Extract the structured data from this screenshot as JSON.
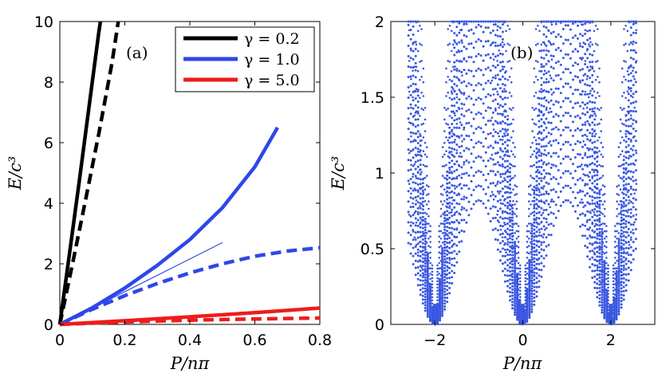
{
  "chart_data": [
    {
      "type": "line",
      "panel_label": "(a)",
      "xlabel": "P/nπ",
      "ylabel": "E/c³",
      "xlim": [
        0,
        0.8
      ],
      "ylim": [
        0,
        10
      ],
      "xticks": [
        "0",
        "0.2",
        "0.4",
        "0.6",
        "0.8"
      ],
      "yticks": [
        "0",
        "2",
        "4",
        "6",
        "8",
        "10"
      ],
      "legend_position": "top-right",
      "legend": [
        {
          "label": "γ = 0.2",
          "color": "#000000"
        },
        {
          "label": "γ = 1.0",
          "color": "#2e47e8"
        },
        {
          "label": "γ = 5.0",
          "color": "#ee1c1c"
        }
      ],
      "series": [
        {
          "name": "γ = 0.2 solid",
          "color": "#000000",
          "style": "solid",
          "x": [
            0,
            0.03,
            0.06,
            0.09,
            0.12,
            0.125
          ],
          "y": [
            0,
            2.35,
            4.75,
            7.2,
            9.65,
            10
          ]
        },
        {
          "name": "γ = 0.2 dashed",
          "color": "#000000",
          "style": "dashed",
          "x": [
            0,
            0.04,
            0.08,
            0.12,
            0.16,
            0.18
          ],
          "y": [
            0,
            2.05,
            4.15,
            6.3,
            8.6,
            10
          ]
        },
        {
          "name": "γ = 1.0 solid",
          "color": "#2e47e8",
          "style": "solid",
          "x": [
            0,
            0.1,
            0.2,
            0.3,
            0.4,
            0.5,
            0.6,
            0.67
          ],
          "y": [
            0,
            0.55,
            1.2,
            1.95,
            2.8,
            3.85,
            5.2,
            6.5
          ]
        },
        {
          "name": "γ = 1.0 dashed",
          "color": "#2e47e8",
          "style": "dashed",
          "x": [
            0,
            0.1,
            0.2,
            0.3,
            0.4,
            0.5,
            0.6,
            0.7,
            0.8
          ],
          "y": [
            0,
            0.5,
            0.95,
            1.35,
            1.7,
            2.0,
            2.25,
            2.42,
            2.53
          ]
        },
        {
          "name": "γ = 1.0 thin",
          "color": "#2e47e8",
          "style": "thin",
          "x": [
            0,
            0.5
          ],
          "y": [
            0,
            2.7
          ]
        },
        {
          "name": "γ = 5.0 solid",
          "color": "#ee1c1c",
          "style": "solid",
          "x": [
            0,
            0.2,
            0.4,
            0.6,
            0.8
          ],
          "y": [
            0,
            0.12,
            0.25,
            0.39,
            0.54
          ]
        },
        {
          "name": "γ = 5.0 dashed",
          "color": "#ee1c1c",
          "style": "dashed",
          "x": [
            0,
            0.2,
            0.4,
            0.6,
            0.8
          ],
          "y": [
            0,
            0.08,
            0.14,
            0.18,
            0.21
          ]
        }
      ]
    },
    {
      "type": "scatter",
      "panel_label": "(b)",
      "xlabel": "P/nπ",
      "ylabel": "E/c³",
      "xlim": [
        -3,
        3
      ],
      "ylim": [
        0,
        2
      ],
      "xticks": [
        "−2",
        "0",
        "2"
      ],
      "yticks": [
        "0",
        "0.5",
        "1",
        "1.5",
        "2"
      ],
      "color": "#3a57e0",
      "band_model": {
        "description": "dense dotted band spectrum; lower edge 0.82·sin(πx/2)², arcs of varying height",
        "lower_edge_peak": 0.82,
        "zeros_at": [
          -2,
          0,
          2
        ],
        "outer_x_extent": 2.6
      }
    }
  ]
}
